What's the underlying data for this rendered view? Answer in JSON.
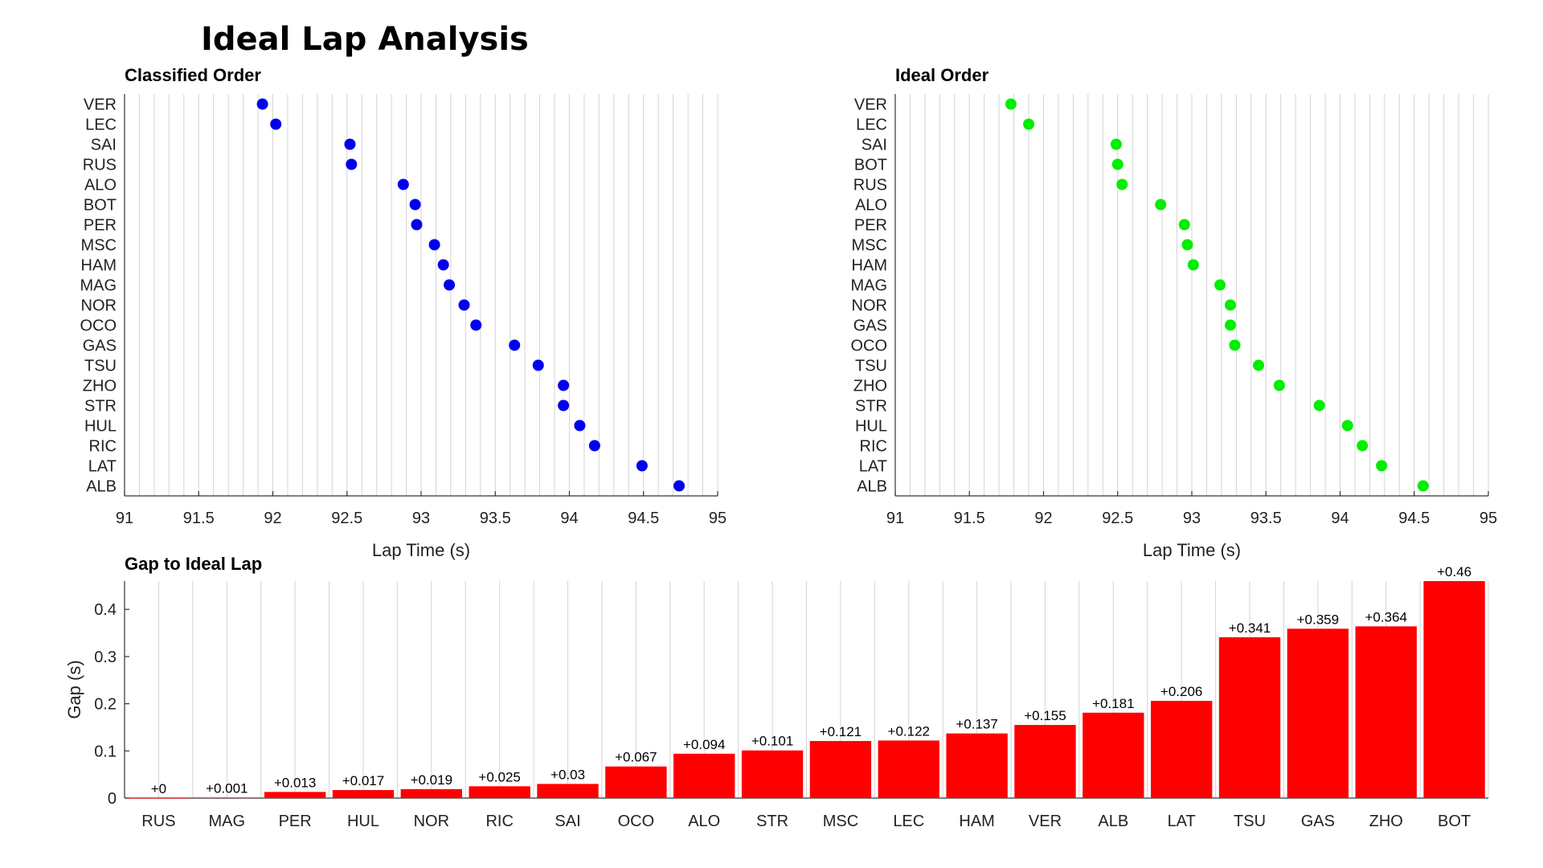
{
  "title": "Ideal Lap Analysis",
  "colors": {
    "classified": "#0000ee",
    "ideal": "#00ee00",
    "bars": "#ff0000"
  },
  "chart_data": [
    {
      "type": "scatter",
      "title": "Classified Order",
      "xlabel": "Lap Time (s)",
      "ylabel": "",
      "xlim": [
        91,
        95
      ],
      "xticks": [
        91,
        91.5,
        92,
        92.5,
        93,
        93.5,
        94,
        94.5,
        95
      ],
      "grid": true,
      "categories": [
        "VER",
        "LEC",
        "SAI",
        "RUS",
        "ALO",
        "BOT",
        "PER",
        "MSC",
        "HAM",
        "MAG",
        "NOR",
        "OCO",
        "GAS",
        "TSU",
        "ZHO",
        "STR",
        "HUL",
        "RIC",
        "LAT",
        "ALB"
      ],
      "values": [
        91.93,
        92.02,
        92.52,
        92.53,
        92.88,
        92.96,
        92.97,
        93.09,
        93.15,
        93.19,
        93.29,
        93.37,
        93.63,
        93.79,
        93.96,
        93.96,
        94.07,
        94.17,
        94.49,
        94.74
      ]
    },
    {
      "type": "scatter",
      "title": "Ideal Order",
      "xlabel": "Lap Time (s)",
      "ylabel": "",
      "xlim": [
        91,
        95
      ],
      "xticks": [
        91,
        91.5,
        92,
        92.5,
        93,
        93.5,
        94,
        94.5,
        95
      ],
      "grid": true,
      "categories": [
        "VER",
        "LEC",
        "SAI",
        "BOT",
        "RUS",
        "ALO",
        "PER",
        "MSC",
        "HAM",
        "MAG",
        "NOR",
        "GAS",
        "OCO",
        "TSU",
        "ZHO",
        "STR",
        "HUL",
        "RIC",
        "LAT",
        "ALB"
      ],
      "values": [
        91.78,
        91.9,
        92.49,
        92.5,
        92.53,
        92.79,
        92.95,
        92.97,
        93.01,
        93.19,
        93.26,
        93.26,
        93.29,
        93.45,
        93.59,
        93.86,
        94.05,
        94.15,
        94.28,
        94.56
      ]
    },
    {
      "type": "bar",
      "title": "Gap to Ideal Lap",
      "xlabel": "",
      "ylabel": "Gap (s)",
      "ylim": [
        0,
        0.46
      ],
      "yticks": [
        0,
        0.1,
        0.2,
        0.3,
        0.4
      ],
      "grid": true,
      "categories": [
        "RUS",
        "MAG",
        "PER",
        "HUL",
        "NOR",
        "RIC",
        "SAI",
        "OCO",
        "ALO",
        "STR",
        "MSC",
        "LEC",
        "HAM",
        "VER",
        "ALB",
        "LAT",
        "TSU",
        "GAS",
        "ZHO",
        "BOT"
      ],
      "values": [
        0,
        0.001,
        0.013,
        0.017,
        0.019,
        0.025,
        0.03,
        0.067,
        0.094,
        0.101,
        0.121,
        0.122,
        0.137,
        0.155,
        0.181,
        0.206,
        0.341,
        0.359,
        0.364,
        0.46
      ],
      "data_labels": [
        "+0",
        "+0.001",
        "+0.013",
        "+0.017",
        "+0.019",
        "+0.025",
        "+0.03",
        "+0.067",
        "+0.094",
        "+0.101",
        "+0.121",
        "+0.122",
        "+0.137",
        "+0.155",
        "+0.181",
        "+0.206",
        "+0.341",
        "+0.359",
        "+0.364",
        "+0.46"
      ]
    }
  ]
}
